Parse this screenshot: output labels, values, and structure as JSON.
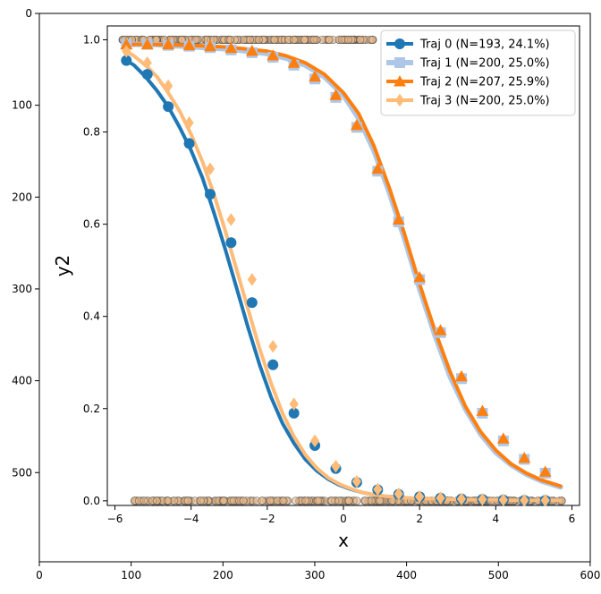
{
  "chart_data": {
    "type": "line",
    "xlabel": "x",
    "ylabel": "y2",
    "xlim": [
      -6.2,
      6.2
    ],
    "ylim": [
      -0.01,
      1.03
    ],
    "x_ticks": [
      "−6",
      "−4",
      "−2",
      "0",
      "2",
      "4",
      "6"
    ],
    "y_ticks": [
      "0.0",
      "0.2",
      "0.4",
      "0.6",
      "0.8",
      "1.0"
    ],
    "pixel_x_ticks": [
      "0",
      "100",
      "200",
      "300",
      "400",
      "500",
      "600"
    ],
    "pixel_y_ticks": [
      "0",
      "100",
      "200",
      "300",
      "400",
      "500"
    ],
    "x_marker_positions": [
      -5.7,
      -5.15,
      -4.6,
      -4.05,
      -3.5,
      -2.95,
      -2.4,
      -1.85,
      -1.3,
      -0.75,
      -0.2,
      0.35,
      0.9,
      1.45,
      2.0,
      2.55,
      3.1,
      3.65,
      4.2,
      4.75,
      5.3
    ],
    "series": [
      {
        "name": "Traj 0 (N=193, 24.1%)",
        "color": "#1f77b4",
        "marker": "circle",
        "curve_x": [
          -5.7,
          -5.5,
          -5.2,
          -4.9,
          -4.6,
          -4.3,
          -4.0,
          -3.7,
          -3.4,
          -3.1,
          -2.8,
          -2.5,
          -2.2,
          -1.9,
          -1.6,
          -1.3,
          -1.0,
          -0.7,
          -0.4,
          -0.1,
          0.2,
          0.5,
          0.8,
          1.1,
          1.4,
          1.7,
          2.0,
          2.5,
          3.0,
          3.5,
          4.0,
          4.5,
          5.0,
          5.5,
          5.7
        ],
        "curve_y": [
          0.955,
          0.945,
          0.92,
          0.89,
          0.855,
          0.81,
          0.76,
          0.7,
          0.625,
          0.545,
          0.46,
          0.375,
          0.295,
          0.225,
          0.168,
          0.125,
          0.09,
          0.065,
          0.047,
          0.034,
          0.025,
          0.018,
          0.013,
          0.01,
          0.008,
          0.006,
          0.005,
          0.004,
          0.003,
          0.002,
          0.002,
          0.001,
          0.001,
          0.001,
          0.001
        ],
        "marker_x": [
          -5.7,
          -5.15,
          -4.6,
          -4.05,
          -3.5,
          -2.95,
          -2.4,
          -1.85,
          -1.3,
          -0.75,
          -0.2,
          0.35,
          0.9,
          1.45,
          2.0,
          2.55,
          3.1,
          3.65,
          4.2,
          4.75,
          5.3
        ],
        "marker_y": [
          0.955,
          0.925,
          0.855,
          0.775,
          0.665,
          0.56,
          0.43,
          0.295,
          0.19,
          0.12,
          0.07,
          0.04,
          0.024,
          0.014,
          0.009,
          0.006,
          0.004,
          0.003,
          0.002,
          0.001,
          0.001
        ]
      },
      {
        "name": "Traj 1 (N=200, 25.0%)",
        "color": "#aec7e8",
        "marker": "square",
        "curve_x": [
          -5.7,
          -5.0,
          -4.0,
          -3.0,
          -2.0,
          -1.5,
          -1.0,
          -0.5,
          0.0,
          0.4,
          0.8,
          1.2,
          1.6,
          2.0,
          2.4,
          2.8,
          3.2,
          3.6,
          4.0,
          4.4,
          4.8,
          5.2,
          5.7
        ],
        "curve_y": [
          0.99,
          0.99,
          0.985,
          0.98,
          0.97,
          0.96,
          0.945,
          0.92,
          0.88,
          0.83,
          0.76,
          0.67,
          0.57,
          0.46,
          0.36,
          0.27,
          0.2,
          0.145,
          0.105,
          0.078,
          0.058,
          0.043,
          0.03
        ],
        "marker_x": [
          -5.7,
          -5.15,
          -4.6,
          -4.05,
          -3.5,
          -2.95,
          -2.4,
          -1.85,
          -1.3,
          -0.75,
          -0.2,
          0.35,
          0.9,
          1.45,
          2.0,
          2.55,
          3.1,
          3.65,
          4.2,
          4.75,
          5.3
        ],
        "marker_y": [
          0.99,
          0.99,
          0.988,
          0.986,
          0.983,
          0.978,
          0.972,
          0.962,
          0.945,
          0.915,
          0.875,
          0.81,
          0.715,
          0.605,
          0.48,
          0.365,
          0.265,
          0.19,
          0.13,
          0.09,
          0.06
        ]
      },
      {
        "name": "Traj 2 (N=207, 25.9%)",
        "color": "#ff7f0e",
        "marker": "triangle",
        "curve_x": [
          -5.7,
          -5.0,
          -4.0,
          -3.0,
          -2.0,
          -1.5,
          -1.0,
          -0.5,
          0.0,
          0.4,
          0.8,
          1.2,
          1.6,
          2.0,
          2.4,
          2.8,
          3.2,
          3.6,
          4.0,
          4.4,
          4.8,
          5.2,
          5.7
        ],
        "curve_y": [
          0.99,
          0.99,
          0.988,
          0.984,
          0.975,
          0.965,
          0.95,
          0.925,
          0.885,
          0.84,
          0.77,
          0.68,
          0.58,
          0.47,
          0.37,
          0.28,
          0.205,
          0.15,
          0.11,
          0.08,
          0.06,
          0.045,
          0.032
        ],
        "marker_x": [
          -5.7,
          -5.15,
          -4.6,
          -4.05,
          -3.5,
          -2.95,
          -2.4,
          -1.85,
          -1.3,
          -0.75,
          -0.2,
          0.35,
          0.9,
          1.45,
          2.0,
          2.55,
          3.1,
          3.65,
          4.2,
          4.75,
          5.3
        ],
        "marker_y": [
          0.99,
          0.99,
          0.99,
          0.988,
          0.986,
          0.982,
          0.976,
          0.966,
          0.95,
          0.92,
          0.88,
          0.815,
          0.72,
          0.61,
          0.485,
          0.37,
          0.27,
          0.195,
          0.135,
          0.093,
          0.063
        ]
      },
      {
        "name": "Traj 3 (N=200, 25.0%)",
        "color": "#ffbb78",
        "marker": "diamond",
        "curve_x": [
          -5.7,
          -5.5,
          -5.2,
          -4.9,
          -4.6,
          -4.3,
          -4.0,
          -3.7,
          -3.4,
          -3.1,
          -2.8,
          -2.5,
          -2.2,
          -1.9,
          -1.6,
          -1.3,
          -1.0,
          -0.7,
          -0.4,
          -0.1,
          0.2,
          0.5,
          0.8,
          1.1,
          1.4,
          1.7,
          2.0,
          2.5,
          3.0,
          3.5,
          4.0,
          4.5,
          5.0,
          5.5,
          5.7
        ],
        "curve_y": [
          0.975,
          0.965,
          0.945,
          0.92,
          0.885,
          0.845,
          0.795,
          0.735,
          0.665,
          0.585,
          0.5,
          0.415,
          0.33,
          0.255,
          0.19,
          0.14,
          0.1,
          0.071,
          0.05,
          0.036,
          0.026,
          0.018,
          0.013,
          0.01,
          0.008,
          0.006,
          0.005,
          0.004,
          0.003,
          0.002,
          0.002,
          0.001,
          0.001,
          0.001,
          0.001
        ],
        "marker_x": [
          -5.7,
          -5.15,
          -4.6,
          -4.05,
          -3.5,
          -2.95,
          -2.4,
          -1.85,
          -1.3,
          -0.75,
          -0.2,
          0.35,
          0.9,
          1.45,
          2.0,
          2.55,
          3.1,
          3.65,
          4.2,
          4.75,
          5.3
        ],
        "marker_y": [
          0.975,
          0.95,
          0.9,
          0.82,
          0.72,
          0.61,
          0.48,
          0.335,
          0.21,
          0.13,
          0.075,
          0.042,
          0.025,
          0.015,
          0.009,
          0.006,
          0.004,
          0.003,
          0.002,
          0.001,
          0.001
        ]
      }
    ],
    "legend": {
      "placement": "top-right",
      "entries": [
        "Traj 0 (N=193, 24.1%)",
        "Traj 1 (N=200, 25.0%)",
        "Traj 2 (N=207, 25.9%)",
        "Traj 3 (N=200, 25.0%)"
      ]
    },
    "scatter_bands": {
      "color": "#e8b888",
      "edge": "#555555",
      "y_levels": [
        0.0,
        1.0
      ]
    }
  }
}
